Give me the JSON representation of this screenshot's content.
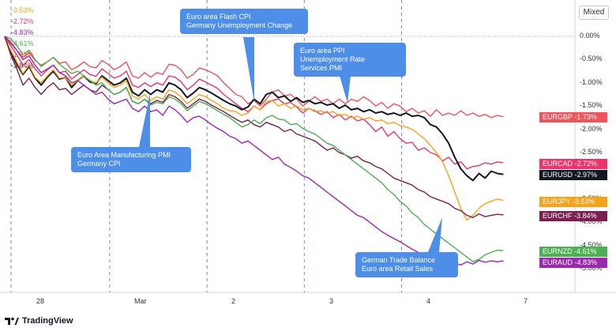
{
  "app": {
    "mode_label": "Mixed",
    "brand": "TradingView"
  },
  "chart_data": {
    "type": "line",
    "ylabel": "",
    "ylim": [
      -5.3,
      0.35
    ],
    "yticks": [
      "0.00%",
      "-0.50%",
      "-1.00%",
      "-1.50%",
      "-2.00%",
      "-2.50%",
      "-3.00%",
      "-3.50%",
      "-4.00%",
      "-4.50%",
      "-5.00%"
    ],
    "ytick_values": [
      0,
      -0.5,
      -1.0,
      -1.5,
      -2.0,
      -2.5,
      -3.0,
      -3.5,
      -4.0,
      -4.5,
      -5.0
    ],
    "xticks": [
      "28",
      "Mar",
      "2",
      "3",
      "4",
      "7"
    ],
    "xtick_index": [
      5,
      21,
      37,
      53,
      69,
      85
    ],
    "event_lines_index": [
      1,
      17,
      33,
      49,
      65
    ],
    "series": [
      {
        "name": "EURGBP",
        "value_label": "-1.73%",
        "color": "#f0545a",
        "values": [
          0,
          -0.12,
          -0.3,
          -0.45,
          -0.35,
          -0.52,
          -0.62,
          -0.55,
          -0.45,
          -0.58,
          -0.55,
          -0.72,
          -0.65,
          -0.55,
          -0.65,
          -0.68,
          -0.52,
          -0.6,
          -0.72,
          -0.65,
          -0.55,
          -0.85,
          -0.9,
          -0.78,
          -0.88,
          -0.78,
          -0.82,
          -0.6,
          -0.62,
          -0.72,
          -0.9,
          -0.82,
          -0.68,
          -0.72,
          -0.78,
          -0.85,
          -1.0,
          -1.12,
          -1.25,
          -1.3,
          -1.45,
          -1.38,
          -1.5,
          -1.35,
          -1.2,
          -1.15,
          -1.28,
          -1.25,
          -1.35,
          -1.5,
          -1.4,
          -1.3,
          -1.4,
          -1.35,
          -1.45,
          -1.35,
          -1.45,
          -1.35,
          -1.4,
          -1.3,
          -1.38,
          -1.5,
          -1.42,
          -1.55,
          -1.45,
          -1.5,
          -1.62,
          -1.55,
          -1.65,
          -1.6,
          -1.72,
          -1.58,
          -1.7,
          -1.65,
          -1.7,
          -1.6,
          -1.7,
          -1.65,
          -1.72,
          -1.68,
          -1.75,
          -1.7,
          -1.73
        ]
      },
      {
        "name": "EURCAD",
        "value_label": "-2.72%",
        "color": "#e9356b",
        "values": [
          0,
          -0.2,
          -0.4,
          -0.62,
          -0.5,
          -0.7,
          -0.85,
          -0.72,
          -0.62,
          -0.78,
          -0.75,
          -0.92,
          -0.82,
          -0.72,
          -0.82,
          -0.86,
          -0.7,
          -0.8,
          -0.9,
          -0.85,
          -0.75,
          -1.05,
          -1.1,
          -1.0,
          -1.08,
          -1.0,
          -1.05,
          -0.85,
          -0.88,
          -0.98,
          -1.15,
          -1.05,
          -0.92,
          -0.98,
          -1.05,
          -1.12,
          -1.25,
          -1.35,
          -1.45,
          -1.55,
          -1.62,
          -1.5,
          -1.58,
          -1.45,
          -1.38,
          -1.35,
          -1.45,
          -1.42,
          -1.52,
          -1.65,
          -1.55,
          -1.6,
          -1.68,
          -1.62,
          -1.75,
          -1.68,
          -1.8,
          -1.72,
          -1.82,
          -1.78,
          -1.9,
          -2.05,
          -1.95,
          -2.15,
          -2.05,
          -2.2,
          -2.3,
          -2.28,
          -2.45,
          -2.4,
          -2.5,
          -2.55,
          -2.68,
          -2.6,
          -2.75,
          -2.7,
          -2.85,
          -2.8,
          -2.78,
          -2.72,
          -2.75,
          -2.7,
          -2.72
        ]
      },
      {
        "name": "EURUSD",
        "value_label": "-2.97%",
        "color": "#131722",
        "values": [
          0,
          -0.35,
          -0.6,
          -0.82,
          -0.65,
          -0.9,
          -1.05,
          -0.88,
          -0.75,
          -0.92,
          -0.88,
          -1.1,
          -0.95,
          -0.85,
          -0.98,
          -1.02,
          -0.85,
          -0.95,
          -1.05,
          -1.0,
          -0.9,
          -1.2,
          -1.28,
          -1.15,
          -1.25,
          -1.15,
          -1.2,
          -1.0,
          -1.05,
          -1.15,
          -1.32,
          -1.22,
          -1.1,
          -1.15,
          -1.22,
          -1.3,
          -1.38,
          -1.45,
          -1.5,
          -1.58,
          -1.52,
          -1.35,
          -1.45,
          -1.25,
          -1.2,
          -1.32,
          -1.28,
          -1.4,
          -1.32,
          -1.42,
          -1.38,
          -1.45,
          -1.42,
          -1.48,
          -1.45,
          -1.55,
          -1.48,
          -1.58,
          -1.55,
          -1.62,
          -1.58,
          -1.65,
          -1.62,
          -1.68,
          -1.65,
          -1.7,
          -1.65,
          -1.72,
          -1.7,
          -1.75,
          -1.9,
          -1.95,
          -2.1,
          -2.3,
          -2.6,
          -2.85,
          -3.0,
          -3.1,
          -2.95,
          -3.05,
          -2.9,
          -2.95,
          -2.97
        ]
      },
      {
        "name": "EURJPY",
        "value_label": "-3.53%",
        "color": "#f7a21b",
        "values": [
          0,
          -0.3,
          -0.55,
          -0.8,
          -0.62,
          -0.88,
          -1.0,
          -0.85,
          -0.72,
          -0.9,
          -0.88,
          -1.05,
          -0.95,
          -0.85,
          -0.95,
          -1.0,
          -0.88,
          -1.0,
          -1.1,
          -1.05,
          -0.95,
          -1.28,
          -1.35,
          -1.25,
          -1.38,
          -1.3,
          -1.35,
          -1.15,
          -1.2,
          -1.3,
          -1.45,
          -1.35,
          -1.25,
          -1.3,
          -1.38,
          -1.45,
          -1.55,
          -1.6,
          -1.62,
          -1.7,
          -1.65,
          -1.5,
          -1.58,
          -1.4,
          -1.38,
          -1.5,
          -1.45,
          -1.55,
          -1.5,
          -1.58,
          -1.55,
          -1.62,
          -1.6,
          -1.65,
          -1.62,
          -1.7,
          -1.68,
          -1.75,
          -1.72,
          -1.78,
          -1.75,
          -1.82,
          -1.8,
          -1.88,
          -1.85,
          -1.92,
          -1.95,
          -2.0,
          -2.1,
          -2.2,
          -2.35,
          -2.5,
          -2.7,
          -3.0,
          -3.35,
          -3.7,
          -3.95,
          -3.85,
          -3.7,
          -3.6,
          -3.55,
          -3.5,
          -3.53
        ]
      },
      {
        "name": "EURCHF",
        "value_label": "-3.84%",
        "color": "#7b1f4f",
        "values": [
          0,
          -0.4,
          -0.7,
          -1.05,
          -0.9,
          -1.1,
          -1.25,
          -1.1,
          -1.0,
          -1.15,
          -1.12,
          -1.25,
          -1.15,
          -1.05,
          -1.15,
          -1.2,
          -1.05,
          -1.15,
          -1.25,
          -1.2,
          -1.1,
          -1.4,
          -1.45,
          -1.35,
          -1.45,
          -1.38,
          -1.42,
          -1.25,
          -1.3,
          -1.4,
          -1.55,
          -1.45,
          -1.35,
          -1.4,
          -1.48,
          -1.55,
          -1.62,
          -1.7,
          -1.78,
          -1.85,
          -1.8,
          -1.9,
          -1.95,
          -1.85,
          -1.9,
          -1.95,
          -2.05,
          -2.0,
          -2.1,
          -2.15,
          -2.2,
          -2.25,
          -2.35,
          -2.45,
          -2.4,
          -2.5,
          -2.55,
          -2.62,
          -2.58,
          -2.68,
          -2.72,
          -2.8,
          -2.85,
          -2.95,
          -3.05,
          -3.1,
          -3.15,
          -3.2,
          -3.3,
          -3.35,
          -3.45,
          -3.5,
          -3.55,
          -3.6,
          -3.7,
          -3.75,
          -3.85,
          -3.9,
          -3.82,
          -3.88,
          -3.85,
          -3.83,
          -3.84
        ]
      },
      {
        "name": "EURNZD",
        "value_label": "-4.61%",
        "color": "#4caf50",
        "values": [
          0,
          -0.05,
          -0.2,
          -0.4,
          -0.3,
          -0.5,
          -0.65,
          -0.55,
          -0.45,
          -0.6,
          -0.7,
          -0.8,
          -0.75,
          -0.85,
          -0.95,
          -1.05,
          -1.0,
          -1.15,
          -1.25,
          -1.2,
          -1.1,
          -1.4,
          -1.45,
          -1.35,
          -1.48,
          -1.42,
          -1.45,
          -1.3,
          -1.35,
          -1.45,
          -1.6,
          -1.5,
          -1.4,
          -1.45,
          -1.52,
          -1.6,
          -1.68,
          -1.75,
          -1.85,
          -1.95,
          -1.9,
          -1.8,
          -1.88,
          -1.75,
          -1.7,
          -1.78,
          -1.8,
          -1.9,
          -1.88,
          -1.98,
          -2.05,
          -2.1,
          -2.2,
          -2.3,
          -2.35,
          -2.45,
          -2.55,
          -2.65,
          -2.75,
          -2.85,
          -2.95,
          -3.05,
          -3.15,
          -3.3,
          -3.4,
          -3.55,
          -3.65,
          -3.8,
          -3.9,
          -4.05,
          -4.15,
          -4.25,
          -4.35,
          -4.45,
          -4.55,
          -4.65,
          -4.75,
          -4.85,
          -4.8,
          -4.7,
          -4.65,
          -4.6,
          -4.61
        ]
      },
      {
        "name": "EURAUD",
        "value_label": "-4.83%",
        "color": "#9c27b0",
        "values": [
          0,
          -0.15,
          -0.3,
          -0.5,
          -0.42,
          -0.62,
          -0.78,
          -0.7,
          -0.62,
          -0.78,
          -0.85,
          -1.0,
          -0.95,
          -1.05,
          -1.15,
          -1.25,
          -1.2,
          -1.35,
          -1.45,
          -1.4,
          -1.35,
          -1.55,
          -1.62,
          -1.5,
          -1.62,
          -1.58,
          -1.7,
          -1.5,
          -1.58,
          -1.7,
          -1.85,
          -1.75,
          -1.72,
          -1.8,
          -1.9,
          -1.98,
          -2.05,
          -2.15,
          -2.2,
          -2.3,
          -2.25,
          -2.35,
          -2.45,
          -2.55,
          -2.65,
          -2.6,
          -2.75,
          -2.82,
          -2.9,
          -3.0,
          -3.05,
          -3.15,
          -3.25,
          -3.35,
          -3.45,
          -3.55,
          -3.65,
          -3.75,
          -3.85,
          -3.9,
          -4.0,
          -4.1,
          -4.2,
          -4.28,
          -4.35,
          -4.42,
          -4.5,
          -4.58,
          -4.65,
          -4.72,
          -4.78,
          -4.85,
          -4.9,
          -4.95,
          -4.88,
          -4.92,
          -4.85,
          -4.9,
          -4.82,
          -4.86,
          -4.83,
          -4.85,
          -4.83
        ]
      }
    ]
  },
  "legend_values": [
    "-3.53%",
    "-2.72%",
    "-4.83%",
    "-4.61%",
    "-1.73%",
    "-3.84%"
  ],
  "callouts": [
    {
      "lines": [
        "Euro area Flash CPI",
        "Germany Unemployment Change"
      ]
    },
    {
      "lines": [
        "Euro area PPI",
        "Unemployment Rate",
        "Services PMI"
      ]
    },
    {
      "lines": [
        "Euro Area Manufacturing PMI",
        "Germany CPI"
      ]
    },
    {
      "lines": [
        "German Trade Balance",
        "Euro area Retail Sales"
      ]
    }
  ]
}
